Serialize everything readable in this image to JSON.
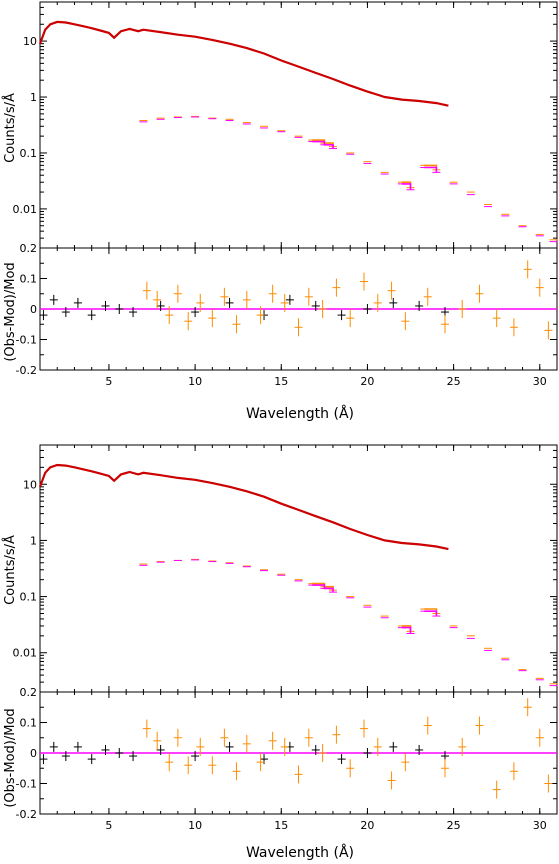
{
  "xlabel": "Wavelength (Å)",
  "colors": {
    "black": "#000000",
    "red": "#cc0000",
    "orange": "#ff8c00",
    "magenta": "#ff00ff"
  },
  "chart_data": [
    {
      "type": "line",
      "name": "top-spectrum",
      "ylabel": "Counts/s/Å",
      "xlim": [
        1,
        31
      ],
      "ylim": [
        0.002,
        50
      ],
      "yscale": "log",
      "xticks": [
        5,
        10,
        15,
        20,
        25,
        30
      ],
      "yticks": [
        0.01,
        0.1,
        1,
        10
      ],
      "ytick_labels": [
        "0.01",
        "0.1",
        "1",
        "10"
      ],
      "series": [
        {
          "color": "red",
          "x": [
            1,
            1.3,
            1.6,
            2,
            2.5,
            3,
            3.5,
            4,
            4.5,
            5,
            5.3,
            5.7,
            6.2,
            6.7,
            7,
            8,
            9,
            10,
            11,
            12,
            13,
            14,
            15,
            16,
            17,
            18,
            19,
            20,
            21,
            22,
            23,
            24,
            24.7
          ],
          "y": [
            9,
            16,
            20,
            22,
            21.5,
            20,
            18.5,
            17,
            15.5,
            14,
            11.5,
            15,
            16.5,
            15,
            16,
            14.5,
            13,
            12,
            10.5,
            9,
            7.5,
            6,
            4.5,
            3.5,
            2.7,
            2.1,
            1.6,
            1.25,
            1,
            0.9,
            0.85,
            0.78,
            0.7
          ]
        },
        {
          "color": "orange",
          "x": [
            7,
            8,
            9,
            10,
            11,
            12,
            13,
            14,
            15,
            16,
            16.8,
            17.5,
            18,
            19,
            20,
            21,
            22,
            22.5,
            23.3,
            24,
            25,
            26,
            27,
            28,
            29,
            30,
            30.8
          ],
          "y": [
            0.38,
            0.42,
            0.44,
            0.45,
            0.42,
            0.4,
            0.35,
            0.3,
            0.25,
            0.2,
            0.17,
            0.15,
            0.13,
            0.1,
            0.07,
            0.045,
            0.03,
            0.024,
            0.06,
            0.05,
            0.03,
            0.02,
            0.012,
            0.008,
            0.005,
            0.0035,
            0.0028
          ]
        },
        {
          "color": "magenta",
          "x": [
            7,
            8,
            9,
            10,
            11,
            12,
            13,
            14,
            15,
            16,
            16.8,
            17.5,
            18,
            19,
            20,
            21,
            22,
            22.5,
            23.3,
            24,
            25,
            26,
            27,
            28,
            29,
            30,
            30.8
          ],
          "y": [
            0.36,
            0.4,
            0.43,
            0.44,
            0.41,
            0.38,
            0.33,
            0.28,
            0.24,
            0.19,
            0.16,
            0.14,
            0.12,
            0.095,
            0.065,
            0.042,
            0.028,
            0.022,
            0.055,
            0.045,
            0.028,
            0.018,
            0.011,
            0.0075,
            0.0048,
            0.0033,
            0.0026
          ]
        }
      ]
    },
    {
      "type": "scatter",
      "name": "top-residuals",
      "ylabel": "(Obs-Mod)/Mod",
      "xlim": [
        1,
        31
      ],
      "ylim": [
        -0.2,
        0.2
      ],
      "xticks": [
        5,
        10,
        15,
        20,
        25,
        30
      ],
      "xtick_labels": [
        "5",
        "10",
        "15",
        "20",
        "25",
        "30"
      ],
      "yticks": [
        -0.2,
        -0.1,
        0,
        0.1,
        0.2
      ],
      "ytick_labels": [
        "-0.2",
        "-0.1",
        "0",
        "0.1",
        "0.2"
      ],
      "zero_line": 0,
      "series": [
        {
          "color": "black",
          "x": [
            1.2,
            1.8,
            2.5,
            3.2,
            4,
            4.8,
            5.6,
            6.4,
            8,
            10,
            12,
            14,
            15.5,
            17,
            18.5,
            20,
            21.5,
            23,
            24.5
          ],
          "y": [
            -0.02,
            0.03,
            -0.01,
            0.02,
            -0.02,
            0.01,
            0.0,
            -0.01,
            0.01,
            -0.01,
            0.02,
            -0.02,
            0.03,
            0.01,
            -0.02,
            0.0,
            0.02,
            0.01,
            -0.01
          ]
        },
        {
          "color": "orange",
          "x": [
            7.2,
            7.8,
            8.5,
            9,
            9.6,
            10.3,
            11,
            11.7,
            12.4,
            13,
            13.8,
            14.5,
            15.2,
            16,
            16.6,
            17.4,
            18.2,
            19,
            19.8,
            20.6,
            21.4,
            22.2,
            23.5,
            24.5,
            25.5,
            26.5,
            27.5,
            28.5,
            29.3,
            30,
            30.5
          ],
          "y": [
            0.06,
            0.03,
            -0.02,
            0.05,
            -0.04,
            0.02,
            -0.03,
            0.04,
            -0.05,
            0.03,
            -0.02,
            0.05,
            0.02,
            -0.06,
            0.04,
            0.0,
            0.07,
            -0.03,
            0.09,
            0.02,
            0.06,
            -0.04,
            0.04,
            -0.05,
            0.0,
            0.05,
            -0.03,
            -0.06,
            0.13,
            0.07,
            -0.07
          ]
        }
      ]
    },
    {
      "type": "line",
      "name": "bottom-spectrum",
      "ylabel": "Counts/s/Å",
      "xlim": [
        1,
        31
      ],
      "ylim": [
        0.002,
        50
      ],
      "yscale": "log",
      "xticks": [
        5,
        10,
        15,
        20,
        25,
        30
      ],
      "yticks": [
        0.01,
        0.1,
        1,
        10
      ],
      "ytick_labels": [
        "0.01",
        "0.1",
        "1",
        "10"
      ],
      "series": [
        {
          "color": "red",
          "x": [
            1,
            1.3,
            1.6,
            2,
            2.5,
            3,
            3.5,
            4,
            4.5,
            5,
            5.3,
            5.7,
            6.2,
            6.7,
            7,
            8,
            9,
            10,
            11,
            12,
            13,
            14,
            15,
            16,
            17,
            18,
            19,
            20,
            21,
            22,
            23,
            24,
            24.7
          ],
          "y": [
            9,
            16,
            20,
            22,
            21.5,
            20,
            18.5,
            17,
            15.5,
            14,
            11.5,
            15,
            16.5,
            15,
            16,
            14.5,
            13,
            12,
            10.5,
            9,
            7.5,
            6,
            4.5,
            3.5,
            2.7,
            2.1,
            1.6,
            1.25,
            1,
            0.9,
            0.85,
            0.78,
            0.7
          ]
        },
        {
          "color": "orange",
          "x": [
            7,
            8,
            9,
            10,
            11,
            12,
            13,
            14,
            15,
            16,
            16.8,
            17.5,
            18,
            19,
            20,
            21,
            22,
            22.5,
            23.3,
            24,
            25,
            26,
            27,
            28,
            29,
            30,
            30.8
          ],
          "y": [
            0.38,
            0.42,
            0.44,
            0.46,
            0.43,
            0.4,
            0.35,
            0.3,
            0.25,
            0.2,
            0.17,
            0.15,
            0.13,
            0.1,
            0.07,
            0.045,
            0.03,
            0.024,
            0.06,
            0.05,
            0.03,
            0.02,
            0.012,
            0.008,
            0.005,
            0.0035,
            0.0028
          ]
        },
        {
          "color": "magenta",
          "x": [
            7,
            8,
            9,
            10,
            11,
            12,
            13,
            14,
            15,
            16,
            16.8,
            17.5,
            18,
            19,
            20,
            21,
            22,
            22.5,
            23.3,
            24,
            25,
            26,
            27,
            28,
            29,
            30,
            30.8
          ],
          "y": [
            0.36,
            0.41,
            0.44,
            0.45,
            0.42,
            0.39,
            0.34,
            0.29,
            0.24,
            0.19,
            0.16,
            0.14,
            0.12,
            0.095,
            0.065,
            0.042,
            0.028,
            0.022,
            0.055,
            0.045,
            0.028,
            0.018,
            0.011,
            0.0075,
            0.0048,
            0.0033,
            0.0026
          ]
        }
      ]
    },
    {
      "type": "scatter",
      "name": "bottom-residuals",
      "ylabel": "(Obs-Mod)/Mod",
      "xlim": [
        1,
        31
      ],
      "ylim": [
        -0.2,
        0.2
      ],
      "xticks": [
        5,
        10,
        15,
        20,
        25,
        30
      ],
      "xtick_labels": [
        "5",
        "10",
        "15",
        "20",
        "25",
        "30"
      ],
      "yticks": [
        -0.2,
        -0.1,
        0,
        0.1,
        0.2
      ],
      "ytick_labels": [
        "-0.2",
        "-0.1",
        "0",
        "0.1",
        "0.2"
      ],
      "zero_line": 0,
      "series": [
        {
          "color": "black",
          "x": [
            1.2,
            1.8,
            2.5,
            3.2,
            4,
            4.8,
            5.6,
            6.4,
            8,
            10,
            12,
            14,
            15.5,
            17,
            18.5,
            20,
            21.5,
            23,
            24.5
          ],
          "y": [
            -0.02,
            0.02,
            -0.01,
            0.02,
            -0.02,
            0.01,
            0.0,
            -0.01,
            0.01,
            -0.01,
            0.02,
            -0.02,
            0.02,
            0.01,
            -0.02,
            0.0,
            0.02,
            0.01,
            -0.01
          ]
        },
        {
          "color": "orange",
          "x": [
            7.2,
            7.8,
            8.5,
            9,
            9.6,
            10.3,
            11,
            11.7,
            12.4,
            13,
            13.8,
            14.5,
            15.2,
            16,
            16.6,
            17.4,
            18.2,
            19,
            19.8,
            20.6,
            21.4,
            22.2,
            23.5,
            24.5,
            25.5,
            26.5,
            27.5,
            28.5,
            29.3,
            30,
            30.5
          ],
          "y": [
            0.08,
            0.04,
            -0.03,
            0.05,
            -0.04,
            0.02,
            -0.04,
            0.05,
            -0.06,
            0.03,
            -0.03,
            0.04,
            0.02,
            -0.07,
            0.05,
            0.0,
            0.06,
            -0.05,
            0.08,
            0.02,
            -0.09,
            -0.03,
            0.09,
            -0.05,
            0.02,
            0.09,
            -0.12,
            -0.06,
            0.15,
            0.05,
            -0.1
          ]
        }
      ]
    }
  ]
}
